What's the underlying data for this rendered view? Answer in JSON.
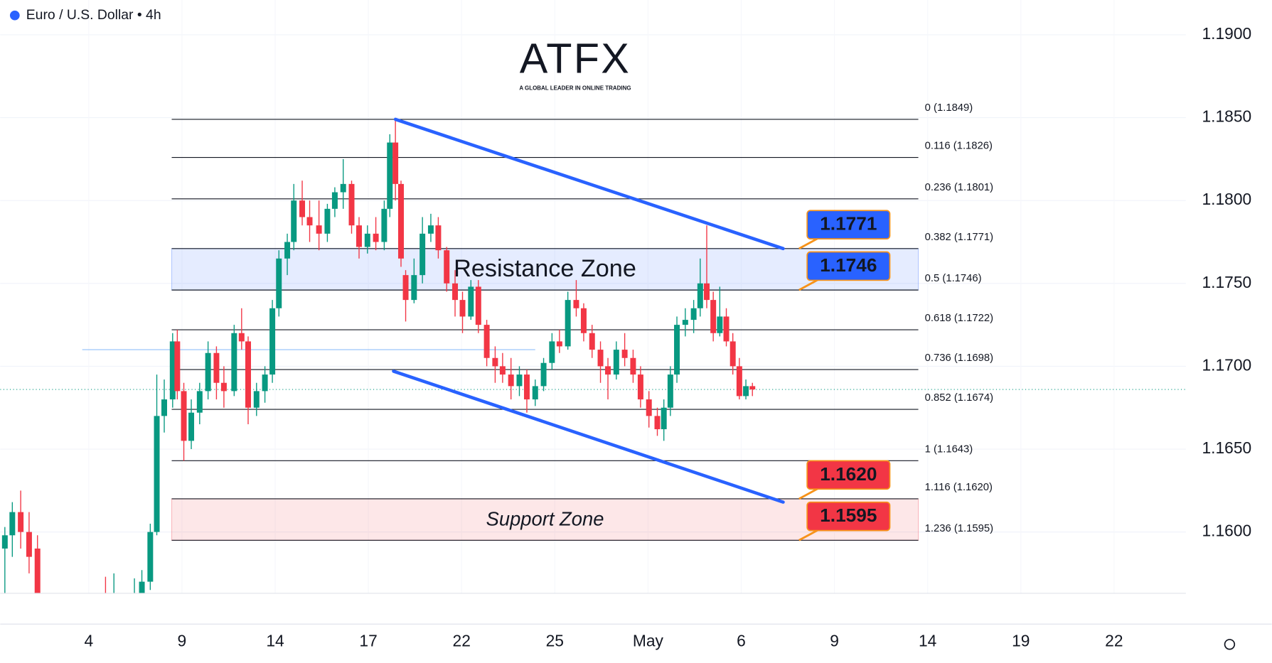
{
  "header": {
    "title": "Euro / U.S. Dollar • 4h"
  },
  "logo": {
    "name": "ATFX",
    "tagline": "A GLOBAL LEADER IN ONLINE TRADING"
  },
  "chart_data": {
    "type": "candlestick",
    "up_color": "#089981",
    "down_color": "#f23645",
    "xlim": [
      -0.95,
      11.77
    ],
    "ylim": [
      1.1563,
      1.1921
    ],
    "xticks": [
      {
        "value": 0,
        "label": "4"
      },
      {
        "value": 1,
        "label": "9"
      },
      {
        "value": 2,
        "label": "14"
      },
      {
        "value": 3,
        "label": "17"
      },
      {
        "value": 4,
        "label": "22"
      },
      {
        "value": 5,
        "label": "25"
      },
      {
        "value": 6,
        "label": "May"
      },
      {
        "value": 7,
        "label": "6"
      },
      {
        "value": 8,
        "label": "9"
      },
      {
        "value": 9,
        "label": "14"
      },
      {
        "value": 10,
        "label": "19"
      },
      {
        "value": 11,
        "label": "22"
      }
    ],
    "yticks": [
      {
        "value": 1.16,
        "label": "1.1600"
      },
      {
        "value": 1.165,
        "label": "1.1650"
      },
      {
        "value": 1.17,
        "label": "1.1700"
      },
      {
        "value": 1.175,
        "label": "1.1750"
      },
      {
        "value": 1.18,
        "label": "1.1800"
      },
      {
        "value": 1.185,
        "label": "1.1850"
      },
      {
        "value": 1.19,
        "label": "1.1900"
      }
    ],
    "grid": true,
    "x": [
      -0.9,
      -0.82,
      -0.73,
      -0.64,
      -0.55,
      0.18,
      0.27,
      0.49,
      0.57,
      0.66,
      0.73,
      0.81,
      0.9,
      0.95,
      1.02,
      1.1,
      1.19,
      1.28,
      1.37,
      1.45,
      1.56,
      1.64,
      1.71,
      1.8,
      1.89,
      1.97,
      2.04,
      2.13,
      2.2,
      2.29,
      2.37,
      2.47,
      2.56,
      2.64,
      2.73,
      2.82,
      2.9,
      2.99,
      3.08,
      3.17,
      3.23,
      3.29,
      3.35,
      3.4,
      3.49,
      3.58,
      3.67,
      3.75,
      3.84,
      3.93,
      4.01,
      4.1,
      4.18,
      4.27,
      4.36,
      4.44,
      4.53,
      4.62,
      4.7,
      4.79,
      4.88,
      4.97,
      5.05,
      5.14,
      5.23,
      5.31,
      5.4,
      5.49,
      5.57,
      5.66,
      5.75,
      5.84,
      5.92,
      6.01,
      6.1,
      6.17,
      6.24,
      6.31,
      6.4,
      6.49,
      6.56,
      6.63,
      6.7,
      6.77,
      6.84,
      6.91,
      6.98,
      7.05,
      7.12
    ],
    "open": [
      1.159,
      1.1598,
      1.1612,
      1.16,
      1.159,
      1.1555,
      1.155,
      1.1555,
      1.156,
      1.157,
      1.16,
      1.167,
      1.168,
      1.1715,
      1.1685,
      1.1655,
      1.1672,
      1.1685,
      1.1708,
      1.169,
      1.1685,
      1.172,
      1.1715,
      1.1675,
      1.1685,
      1.1695,
      1.1735,
      1.1765,
      1.1775,
      1.18,
      1.179,
      1.1785,
      1.178,
      1.1795,
      1.1805,
      1.181,
      1.1785,
      1.1772,
      1.178,
      1.1775,
      1.1795,
      1.1835,
      1.181,
      1.1755,
      1.174,
      1.1755,
      1.178,
      1.1785,
      1.177,
      1.175,
      1.174,
      1.173,
      1.1748,
      1.1725,
      1.1705,
      1.17,
      1.1695,
      1.1688,
      1.1695,
      1.168,
      1.1688,
      1.1702,
      1.1715,
      1.1712,
      1.174,
      1.1735,
      1.172,
      1.171,
      1.17,
      1.1695,
      1.171,
      1.1705,
      1.1695,
      1.168,
      1.167,
      1.1662,
      1.1675,
      1.1695,
      1.1725,
      1.1728,
      1.1735,
      1.175,
      1.174,
      1.172,
      1.173,
      1.1715,
      1.17,
      1.1682,
      1.1688
    ],
    "high": [
      1.1603,
      1.1618,
      1.1625,
      1.1612,
      1.1598,
      1.1573,
      1.1575,
      1.1572,
      1.1577,
      1.1605,
      1.1695,
      1.1692,
      1.172,
      1.1722,
      1.169,
      1.168,
      1.169,
      1.1715,
      1.1712,
      1.17,
      1.1725,
      1.1735,
      1.1718,
      1.169,
      1.17,
      1.174,
      1.177,
      1.178,
      1.181,
      1.1812,
      1.18,
      1.18,
      1.1798,
      1.1808,
      1.1825,
      1.1812,
      1.179,
      1.1785,
      1.179,
      1.18,
      1.184,
      1.1849,
      1.1812,
      1.1758,
      1.1765,
      1.179,
      1.1792,
      1.179,
      1.1772,
      1.1758,
      1.1745,
      1.1752,
      1.1752,
      1.1728,
      1.1712,
      1.1708,
      1.1705,
      1.17,
      1.1698,
      1.1692,
      1.1705,
      1.172,
      1.1722,
      1.1745,
      1.1752,
      1.1738,
      1.1725,
      1.1715,
      1.1705,
      1.1715,
      1.172,
      1.171,
      1.17,
      1.1685,
      1.1675,
      1.168,
      1.17,
      1.173,
      1.1735,
      1.174,
      1.1765,
      1.1785,
      1.1745,
      1.1748,
      1.1735,
      1.172,
      1.1705,
      1.1692,
      1.169
    ],
    "low": [
      1.156,
      1.1585,
      1.159,
      1.1575,
      1.155,
      1.154,
      1.1545,
      1.1545,
      1.155,
      1.1565,
      1.1598,
      1.166,
      1.1675,
      1.168,
      1.1643,
      1.165,
      1.1665,
      1.168,
      1.168,
      1.1675,
      1.1682,
      1.171,
      1.1665,
      1.167,
      1.1678,
      1.169,
      1.173,
      1.1755,
      1.177,
      1.1785,
      1.1775,
      1.177,
      1.1775,
      1.179,
      1.1795,
      1.178,
      1.1765,
      1.1768,
      1.177,
      1.177,
      1.179,
      1.18,
      1.176,
      1.1727,
      1.1738,
      1.175,
      1.1775,
      1.1765,
      1.1745,
      1.173,
      1.172,
      1.1728,
      1.172,
      1.17,
      1.169,
      1.169,
      1.168,
      1.1682,
      1.1672,
      1.1676,
      1.1685,
      1.1698,
      1.1708,
      1.171,
      1.173,
      1.1715,
      1.1705,
      1.169,
      1.168,
      1.1692,
      1.17,
      1.169,
      1.1675,
      1.1663,
      1.1658,
      1.1655,
      1.167,
      1.169,
      1.1718,
      1.172,
      1.173,
      1.1735,
      1.1715,
      1.1718,
      1.1712,
      1.1695,
      1.168,
      1.168,
      1.1682
    ],
    "close": [
      1.1598,
      1.1612,
      1.16,
      1.1585,
      1.156,
      1.155,
      1.156,
      1.1562,
      1.157,
      1.16,
      1.167,
      1.168,
      1.1715,
      1.1685,
      1.1655,
      1.1672,
      1.1685,
      1.1708,
      1.169,
      1.1685,
      1.172,
      1.1715,
      1.1675,
      1.1685,
      1.1695,
      1.1735,
      1.1765,
      1.1775,
      1.18,
      1.179,
      1.1785,
      1.178,
      1.1795,
      1.1805,
      1.181,
      1.1785,
      1.1772,
      1.178,
      1.1775,
      1.1795,
      1.1835,
      1.181,
      1.1765,
      1.174,
      1.1755,
      1.178,
      1.1785,
      1.177,
      1.175,
      1.174,
      1.173,
      1.1748,
      1.1725,
      1.1705,
      1.17,
      1.1695,
      1.1688,
      1.1695,
      1.168,
      1.1688,
      1.1702,
      1.1715,
      1.1712,
      1.174,
      1.1735,
      1.172,
      1.171,
      1.17,
      1.1695,
      1.171,
      1.1705,
      1.1695,
      1.168,
      1.167,
      1.1662,
      1.1675,
      1.1695,
      1.1725,
      1.1728,
      1.1735,
      1.175,
      1.174,
      1.172,
      1.173,
      1.1715,
      1.17,
      1.1682,
      1.1688,
      1.1686
    ],
    "fib_x": [
      0.89,
      8.9
    ],
    "fib_levels": [
      {
        "value": 1.1849,
        "label": "0 (1.1849)"
      },
      {
        "value": 1.1826,
        "label": "0.116 (1.1826)"
      },
      {
        "value": 1.1801,
        "label": "0.236 (1.1801)"
      },
      {
        "value": 1.1771,
        "label": "0.382 (1.1771)"
      },
      {
        "value": 1.1746,
        "label": "0.5 (1.1746)"
      },
      {
        "value": 1.1722,
        "label": "0.618 (1.1722)"
      },
      {
        "value": 1.1698,
        "label": "0.736 (1.1698)"
      },
      {
        "value": 1.1674,
        "label": "0.852 (1.1674)"
      },
      {
        "value": 1.1643,
        "label": "1 (1.1643)"
      },
      {
        "value": 1.162,
        "label": "1.116 (1.1620)"
      },
      {
        "value": 1.1595,
        "label": "1.236 (1.1595)"
      }
    ],
    "zones": [
      {
        "label": "Resistance Zone",
        "range": [
          1.1746,
          1.1771
        ],
        "color": "#2962ff"
      },
      {
        "label": "Support Zone",
        "range": [
          1.1595,
          1.162
        ],
        "color": "#f23645"
      }
    ],
    "channel": [
      {
        "x": [
          3.29,
          7.45
        ],
        "y": [
          1.1849,
          1.1771
        ]
      },
      {
        "x": [
          3.27,
          7.45
        ],
        "y": [
          1.1697,
          1.1618
        ]
      }
    ],
    "channel_color": "#2962ff",
    "price_tags": [
      {
        "value": 1.1771,
        "label": "1.1771",
        "color": "#2962ff"
      },
      {
        "value": 1.1746,
        "label": "1.1746",
        "color": "#2962ff"
      },
      {
        "value": 1.162,
        "label": "1.1620",
        "color": "#f23645"
      },
      {
        "value": 1.1595,
        "label": "1.1595",
        "color": "#f23645"
      }
    ],
    "last_price": 1.1686,
    "ref_line": {
      "x": [
        -0.07,
        4.79
      ],
      "y": 1.171
    }
  }
}
